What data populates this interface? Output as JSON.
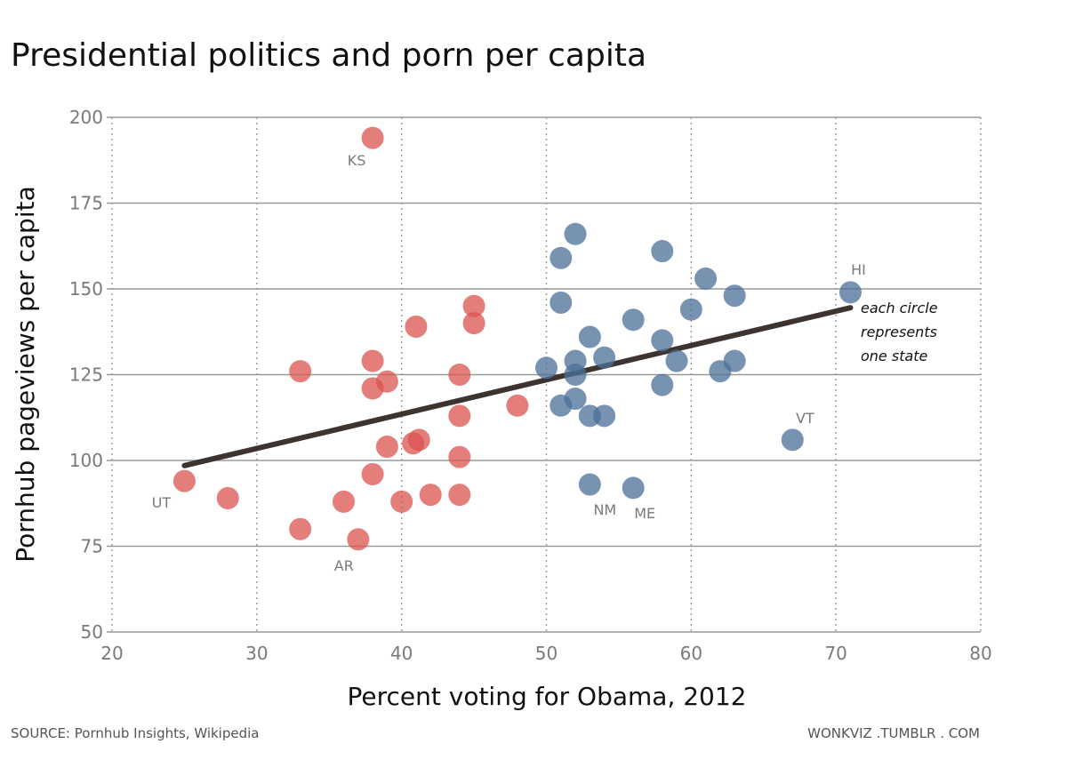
{
  "chart_data": {
    "type": "scatter",
    "title": "Presidential politics and porn per capita",
    "xlabel": "Percent voting for Obama, 2012",
    "ylabel": "Pornhub pageviews per capita",
    "xlim": [
      20,
      80
    ],
    "ylim": [
      50,
      200
    ],
    "x_ticks": [
      "20",
      "30",
      "40",
      "50",
      "60",
      "70",
      "80"
    ],
    "y_ticks": [
      "50",
      "75",
      "100",
      "125",
      "150",
      "175",
      "200"
    ],
    "grid": "both",
    "colors": {
      "red": "#d9534f",
      "blue": "#4a6f97",
      "trend": "#3d3430"
    },
    "trendline": {
      "x": [
        25,
        71
      ],
      "y": [
        98.5,
        144.5
      ]
    },
    "points": [
      {
        "x": 38,
        "y": 194,
        "group": "red",
        "label": "KS"
      },
      {
        "x": 25,
        "y": 94,
        "group": "red",
        "label": "UT"
      },
      {
        "x": 37,
        "y": 77,
        "group": "red",
        "label": "AR"
      },
      {
        "x": 28,
        "y": 89,
        "group": "red"
      },
      {
        "x": 33,
        "y": 80,
        "group": "red"
      },
      {
        "x": 33,
        "y": 126,
        "group": "red"
      },
      {
        "x": 36,
        "y": 88,
        "group": "red"
      },
      {
        "x": 38,
        "y": 96,
        "group": "red"
      },
      {
        "x": 38,
        "y": 121,
        "group": "red"
      },
      {
        "x": 38,
        "y": 129,
        "group": "red"
      },
      {
        "x": 39,
        "y": 123,
        "group": "red"
      },
      {
        "x": 39,
        "y": 104,
        "group": "red"
      },
      {
        "x": 40,
        "y": 88,
        "group": "red"
      },
      {
        "x": 40.8,
        "y": 105,
        "group": "red"
      },
      {
        "x": 41.2,
        "y": 106,
        "group": "red"
      },
      {
        "x": 41,
        "y": 139,
        "group": "red"
      },
      {
        "x": 42,
        "y": 90,
        "group": "red"
      },
      {
        "x": 44,
        "y": 90,
        "group": "red"
      },
      {
        "x": 44,
        "y": 101,
        "group": "red"
      },
      {
        "x": 44,
        "y": 113,
        "group": "red"
      },
      {
        "x": 44,
        "y": 125,
        "group": "red"
      },
      {
        "x": 45,
        "y": 140,
        "group": "red"
      },
      {
        "x": 45,
        "y": 145,
        "group": "red"
      },
      {
        "x": 48,
        "y": 116,
        "group": "red"
      },
      {
        "x": 50,
        "y": 127,
        "group": "blue"
      },
      {
        "x": 51,
        "y": 159,
        "group": "blue"
      },
      {
        "x": 51,
        "y": 146,
        "group": "blue"
      },
      {
        "x": 51,
        "y": 116,
        "group": "blue"
      },
      {
        "x": 52,
        "y": 166,
        "group": "blue"
      },
      {
        "x": 52,
        "y": 129,
        "group": "blue"
      },
      {
        "x": 52,
        "y": 125,
        "group": "blue"
      },
      {
        "x": 52,
        "y": 118,
        "group": "blue"
      },
      {
        "x": 53,
        "y": 136,
        "group": "blue"
      },
      {
        "x": 53,
        "y": 113,
        "group": "blue"
      },
      {
        "x": 53,
        "y": 93,
        "group": "blue",
        "label": "NM"
      },
      {
        "x": 54,
        "y": 130,
        "group": "blue"
      },
      {
        "x": 54,
        "y": 113,
        "group": "blue"
      },
      {
        "x": 56,
        "y": 141,
        "group": "blue"
      },
      {
        "x": 56,
        "y": 92,
        "group": "blue",
        "label": "ME"
      },
      {
        "x": 58,
        "y": 161,
        "group": "blue"
      },
      {
        "x": 58,
        "y": 135,
        "group": "blue"
      },
      {
        "x": 58,
        "y": 122,
        "group": "blue"
      },
      {
        "x": 59,
        "y": 129,
        "group": "blue"
      },
      {
        "x": 60,
        "y": 144,
        "group": "blue"
      },
      {
        "x": 61,
        "y": 153,
        "group": "blue"
      },
      {
        "x": 62,
        "y": 126,
        "group": "blue"
      },
      {
        "x": 63,
        "y": 148,
        "group": "blue"
      },
      {
        "x": 63,
        "y": 129,
        "group": "blue"
      },
      {
        "x": 67,
        "y": 106,
        "group": "blue",
        "label": "VT"
      },
      {
        "x": 71,
        "y": 149,
        "group": "blue",
        "label": "HI"
      }
    ],
    "annotation": [
      "each circle",
      "represents",
      "one state"
    ]
  },
  "footer": {
    "source": "SOURCE: Pornhub Insights, Wikipedia",
    "credit": "WONKVIZ .TUMBLR . COM"
  }
}
